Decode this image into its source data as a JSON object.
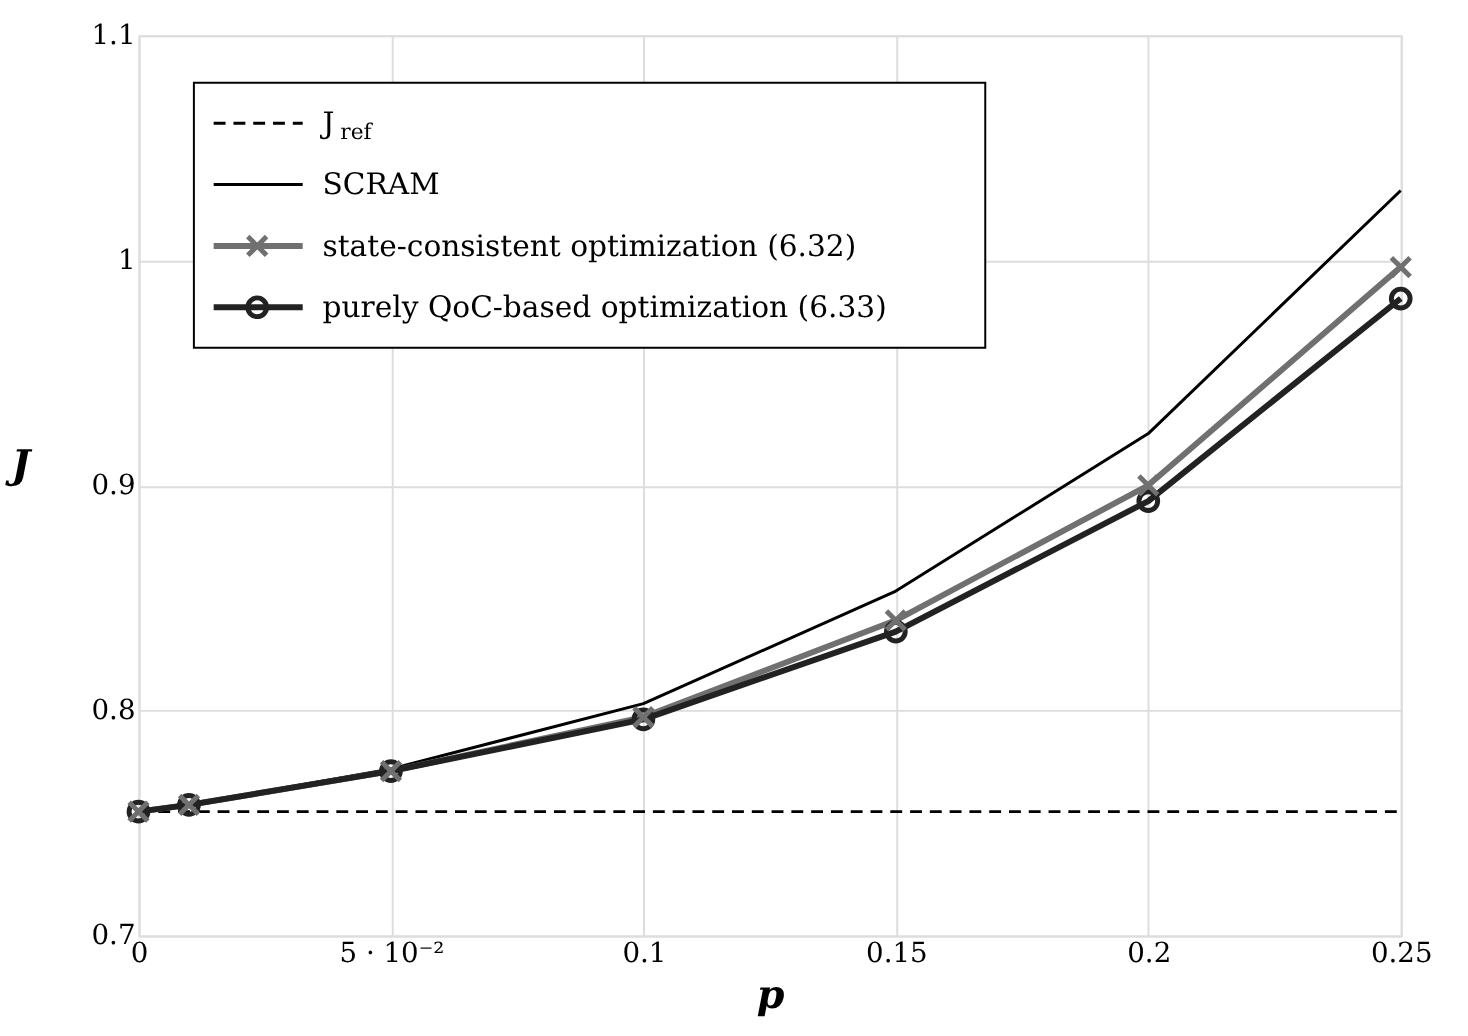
{
  "chart_data": {
    "type": "line",
    "xlabel": "p",
    "ylabel": "J",
    "xlim": [
      0,
      0.25
    ],
    "ylim": [
      0.7,
      1.1
    ],
    "xticks": [
      0,
      {
        "value": 0.05,
        "label": "5 · 10⁻²"
      },
      0.1,
      0.15,
      0.2,
      0.25
    ],
    "yticks": [
      0.7,
      0.8,
      0.9,
      1,
      1.1
    ],
    "grid": true,
    "legend": "top left",
    "series": [
      {
        "name": "J$_{ref}$",
        "color": "#000000",
        "line_style": "dashed",
        "marker": "none",
        "x": [
          0,
          0.25
        ],
        "values": [
          0.755,
          0.755
        ]
      },
      {
        "name": "SCRAM",
        "color": "#000000",
        "line_style": "solid",
        "marker": "none",
        "x": [
          0,
          0.01,
          0.05,
          0.1,
          0.15,
          0.2,
          0.25
        ],
        "values": [
          0.755,
          0.758,
          0.774,
          0.803,
          0.853,
          0.923,
          1.031
        ]
      },
      {
        "name": "state-consistent optimization (6.32)",
        "color": "#707070",
        "line_style": "solid",
        "marker": "cross",
        "x": [
          0,
          0.01,
          0.05,
          0.1,
          0.15,
          0.2,
          0.25
        ],
        "values": [
          0.755,
          0.758,
          0.773,
          0.797,
          0.84,
          0.9,
          0.997
        ]
      },
      {
        "name": "purely QoC-based optimization (6.33)",
        "color": "#222222",
        "line_style": "solid",
        "marker": "circle",
        "x": [
          0,
          0.01,
          0.05,
          0.1,
          0.15,
          0.2,
          0.25
        ],
        "values": [
          0.755,
          0.758,
          0.773,
          0.796,
          0.835,
          0.893,
          0.983
        ]
      }
    ]
  }
}
